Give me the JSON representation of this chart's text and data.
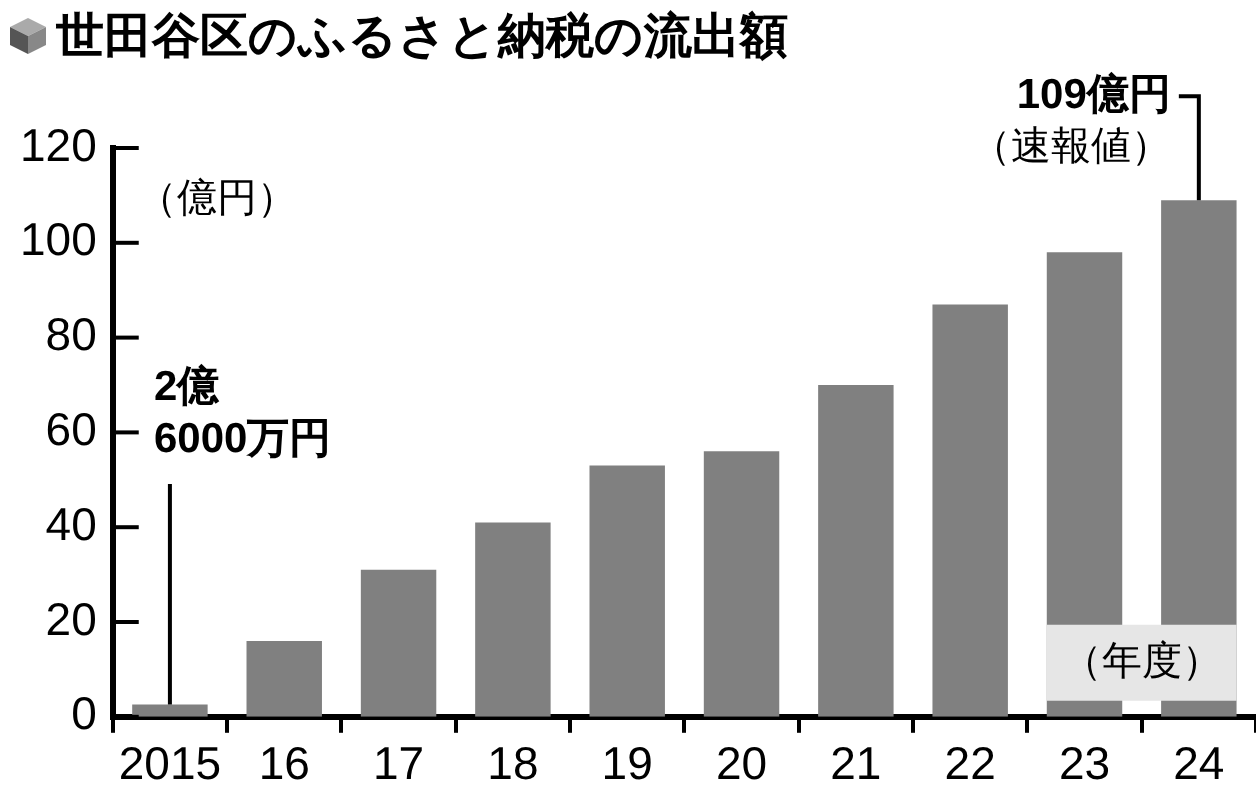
{
  "chart_data": {
    "type": "bar",
    "title": "世田谷区のふるさと納税の流出額",
    "ylabel": "（億円）",
    "xlabel": "（年度）",
    "categories": [
      "2015",
      "16",
      "17",
      "18",
      "19",
      "20",
      "21",
      "22",
      "23",
      "24"
    ],
    "values": [
      2.6,
      16,
      31,
      41,
      53,
      56,
      70,
      87,
      98,
      109
    ],
    "annotations": [
      {
        "text": "2億6000万円",
        "x": "2015",
        "y": 2.6
      },
      {
        "text": "109億円（速報値）",
        "x": "24",
        "y": 109
      }
    ],
    "color": "#808080",
    "ylim": [
      0,
      120
    ],
    "yticks": [
      0,
      20,
      40,
      60,
      80,
      100,
      120
    ],
    "grid": false,
    "legend": false
  }
}
